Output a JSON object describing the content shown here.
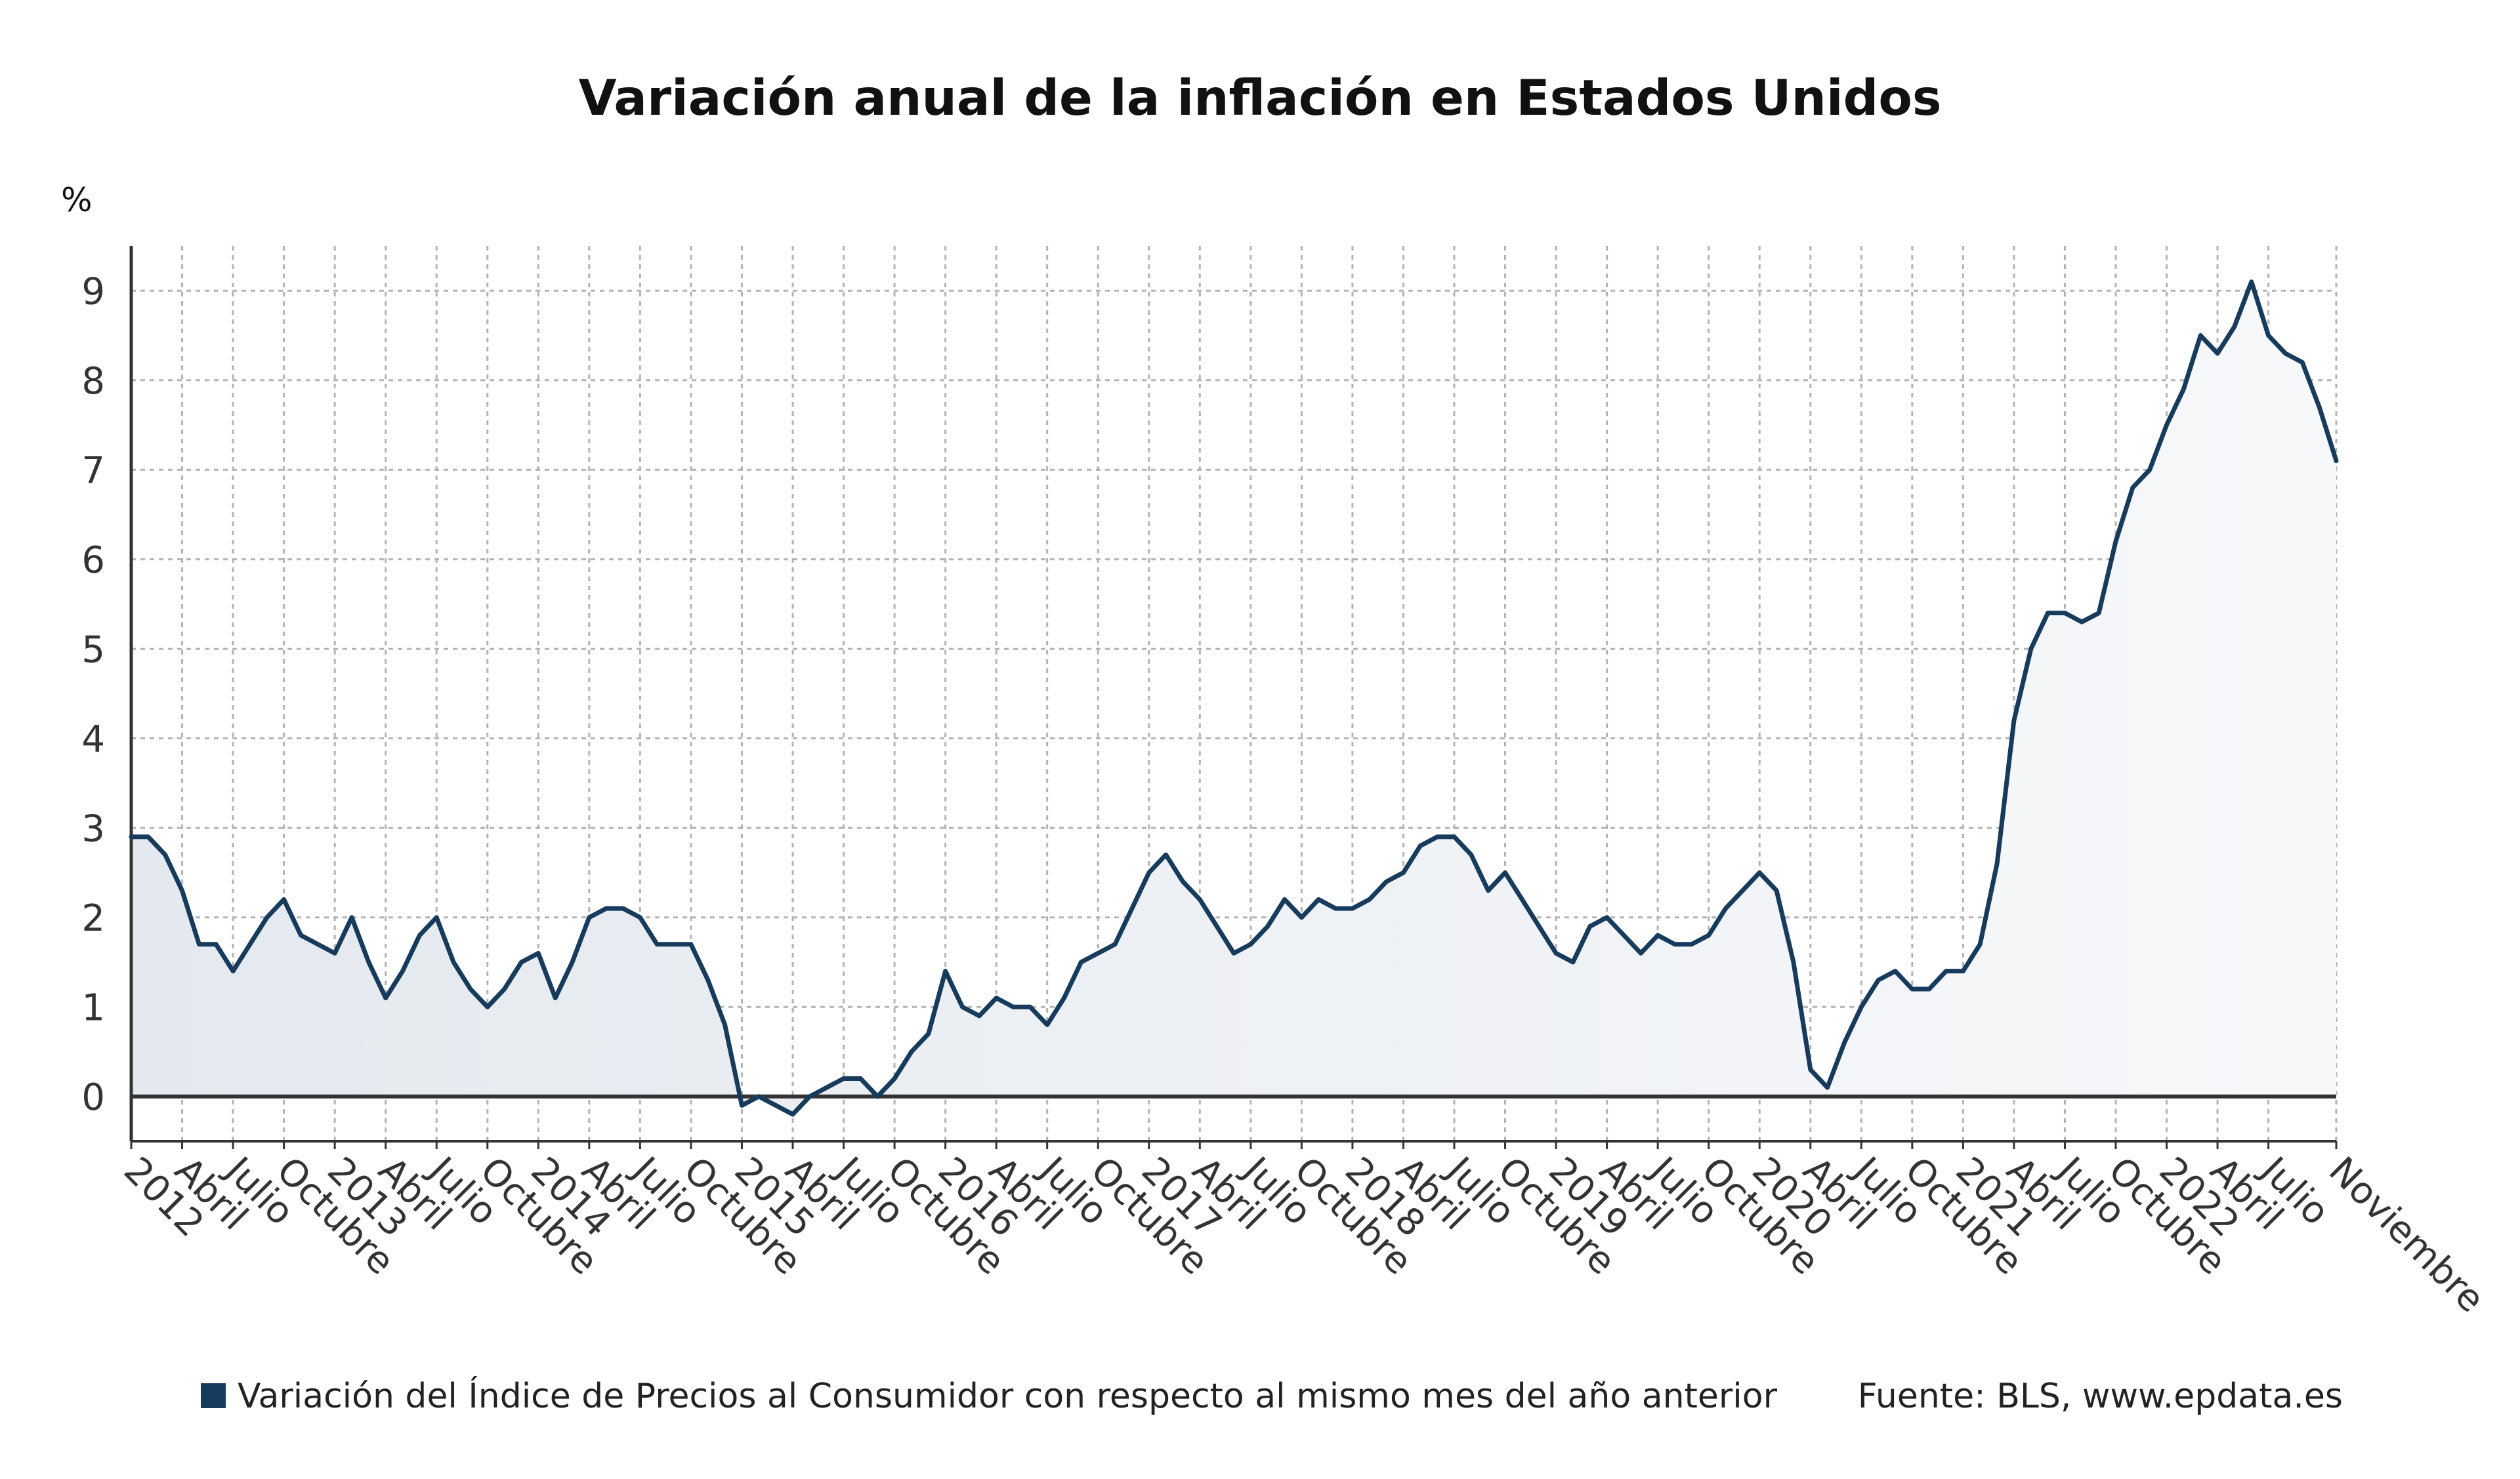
{
  "chart_data": {
    "type": "area",
    "title": "Variación anual de la inflación en Estados Unidos",
    "y_unit": "%",
    "ylim": [
      -0.5,
      9.5
    ],
    "yticks": [
      0,
      1,
      2,
      3,
      4,
      5,
      6,
      7,
      8,
      9
    ],
    "grid": true,
    "x_start": "2012-01",
    "x_end": "2022-11",
    "x_tick_labels": [
      {
        "date": "2012-01",
        "label": "2012"
      },
      {
        "date": "2012-04",
        "label": "Abril"
      },
      {
        "date": "2012-07",
        "label": "Julio"
      },
      {
        "date": "2012-10",
        "label": "Octubre"
      },
      {
        "date": "2013-01",
        "label": "2013"
      },
      {
        "date": "2013-04",
        "label": "Abril"
      },
      {
        "date": "2013-07",
        "label": "Julio"
      },
      {
        "date": "2013-10",
        "label": "Octubre"
      },
      {
        "date": "2014-01",
        "label": "2014"
      },
      {
        "date": "2014-04",
        "label": "Abril"
      },
      {
        "date": "2014-07",
        "label": "Julio"
      },
      {
        "date": "2014-10",
        "label": "Octubre"
      },
      {
        "date": "2015-01",
        "label": "2015"
      },
      {
        "date": "2015-04",
        "label": "Abril"
      },
      {
        "date": "2015-07",
        "label": "Julio"
      },
      {
        "date": "2015-10",
        "label": "Octubre"
      },
      {
        "date": "2016-01",
        "label": "2016"
      },
      {
        "date": "2016-04",
        "label": "Abril"
      },
      {
        "date": "2016-07",
        "label": "Julio"
      },
      {
        "date": "2016-10",
        "label": "Octubre"
      },
      {
        "date": "2017-01",
        "label": "2017"
      },
      {
        "date": "2017-04",
        "label": "Abril"
      },
      {
        "date": "2017-07",
        "label": "Julio"
      },
      {
        "date": "2017-10",
        "label": "Octubre"
      },
      {
        "date": "2018-01",
        "label": "2018"
      },
      {
        "date": "2018-04",
        "label": "Abril"
      },
      {
        "date": "2018-07",
        "label": "Julio"
      },
      {
        "date": "2018-10",
        "label": "Octubre"
      },
      {
        "date": "2019-01",
        "label": "2019"
      },
      {
        "date": "2019-04",
        "label": "Abril"
      },
      {
        "date": "2019-07",
        "label": "Julio"
      },
      {
        "date": "2019-10",
        "label": "Octubre"
      },
      {
        "date": "2020-01",
        "label": "2020"
      },
      {
        "date": "2020-04",
        "label": "Abril"
      },
      {
        "date": "2020-07",
        "label": "Julio"
      },
      {
        "date": "2020-10",
        "label": "Octubre"
      },
      {
        "date": "2021-01",
        "label": "2021"
      },
      {
        "date": "2021-04",
        "label": "Abril"
      },
      {
        "date": "2021-07",
        "label": "Julio"
      },
      {
        "date": "2021-10",
        "label": "Octubre"
      },
      {
        "date": "2022-01",
        "label": "2022"
      },
      {
        "date": "2022-04",
        "label": "Abril"
      },
      {
        "date": "2022-07",
        "label": "Julio"
      },
      {
        "date": "2022-11",
        "label": "Noviembre"
      }
    ],
    "series": [
      {
        "name": "Variación del Índice de Precios al Consumidor con respecto al mismo mes del año anterior",
        "color": "#163b5c",
        "values": [
          2.9,
          2.9,
          2.7,
          2.3,
          1.7,
          1.7,
          1.4,
          1.7,
          2.0,
          2.2,
          1.8,
          1.7,
          1.6,
          2.0,
          1.5,
          1.1,
          1.4,
          1.8,
          2.0,
          1.5,
          1.2,
          1.0,
          1.2,
          1.5,
          1.6,
          1.1,
          1.5,
          2.0,
          2.1,
          2.1,
          2.0,
          1.7,
          1.7,
          1.7,
          1.3,
          0.8,
          -0.1,
          0.0,
          -0.1,
          -0.2,
          0.0,
          0.1,
          0.2,
          0.2,
          0.0,
          0.2,
          0.5,
          0.7,
          1.4,
          1.0,
          0.9,
          1.1,
          1.0,
          1.0,
          0.8,
          1.1,
          1.5,
          1.6,
          1.7,
          2.1,
          2.5,
          2.7,
          2.4,
          2.2,
          1.9,
          1.6,
          1.7,
          1.9,
          2.2,
          2.0,
          2.2,
          2.1,
          2.1,
          2.2,
          2.4,
          2.5,
          2.8,
          2.9,
          2.9,
          2.7,
          2.3,
          2.5,
          2.2,
          1.9,
          1.6,
          1.5,
          1.9,
          2.0,
          1.8,
          1.6,
          1.8,
          1.7,
          1.7,
          1.8,
          2.1,
          2.3,
          2.5,
          2.3,
          1.5,
          0.3,
          0.1,
          0.6,
          1.0,
          1.3,
          1.4,
          1.2,
          1.2,
          1.4,
          1.4,
          1.7,
          2.6,
          4.2,
          5.0,
          5.4,
          5.4,
          5.3,
          5.4,
          6.2,
          6.8,
          7.0,
          7.5,
          7.9,
          8.5,
          8.3,
          8.6,
          9.1,
          8.5,
          8.3,
          8.2,
          7.7,
          7.1
        ]
      }
    ],
    "legend_position": "bottom",
    "source": "Fuente: BLS, www.epdata.es"
  }
}
